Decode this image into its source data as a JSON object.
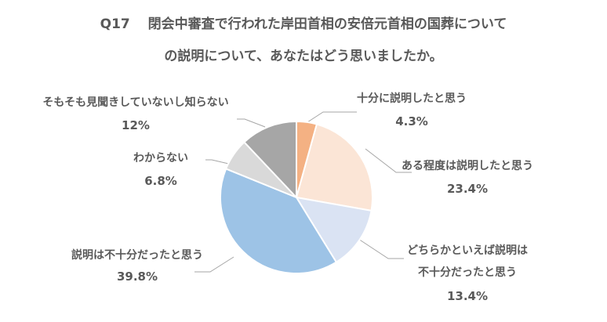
{
  "chart_data": {
    "type": "pie",
    "title_lines": [
      "Q17　 閉会中審査で行われた岸田首相の安倍元首相の国葬について",
      "の説明について、あなたはどう思いましたか。"
    ],
    "start_angle_deg": 0,
    "direction": "clockwise",
    "slices": [
      {
        "label_lines": [
          "十分に説明したと思う"
        ],
        "value": 4.3,
        "display": "4.3%",
        "color": "#F4B183"
      },
      {
        "label_lines": [
          "ある程度は説明したと思う"
        ],
        "value": 23.4,
        "display": "23.4%",
        "color": "#FBE5D6"
      },
      {
        "label_lines": [
          "どちらかといえば説明は",
          "不十分だったと思う"
        ],
        "value": 13.4,
        "display": "13.4%",
        "color": "#DAE3F3"
      },
      {
        "label_lines": [
          "説明は不十分だったと思う"
        ],
        "value": 39.8,
        "display": "39.8%",
        "color": "#9DC3E6"
      },
      {
        "label_lines": [
          "わからない"
        ],
        "value": 6.8,
        "display": "6.8%",
        "color": "#D9D9D9"
      },
      {
        "label_lines": [
          "そもそも見聞きしていないし知らない"
        ],
        "value": 12.0,
        "display": "12%",
        "color": "#A6A6A6"
      }
    ]
  }
}
